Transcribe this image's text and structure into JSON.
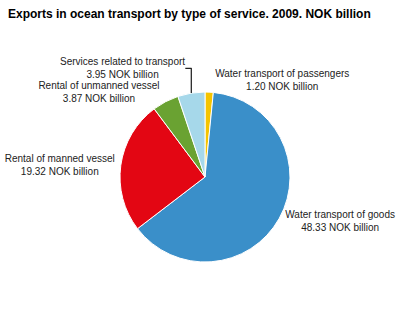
{
  "chart_data": {
    "type": "pie",
    "title": "Exports in ocean transport by type of service. 2009. NOK billion",
    "categories": [
      "Water transport of passengers",
      "Water transport of goods",
      "Rental of manned vessel",
      "Rental of unmanned vessel",
      "Services related to transport"
    ],
    "values": [
      1.2,
      48.33,
      19.32,
      3.87,
      3.95
    ],
    "value_labels": [
      "1.20 NOK billion",
      "48.33 NOK billion",
      "19.32 NOK billion",
      "3.87 NOK billion",
      "3.95 NOK billion"
    ],
    "colors": [
      "#f5c400",
      "#3a8fc9",
      "#e30613",
      "#6aa232",
      "#a6d8ea"
    ],
    "data_labels": true
  }
}
